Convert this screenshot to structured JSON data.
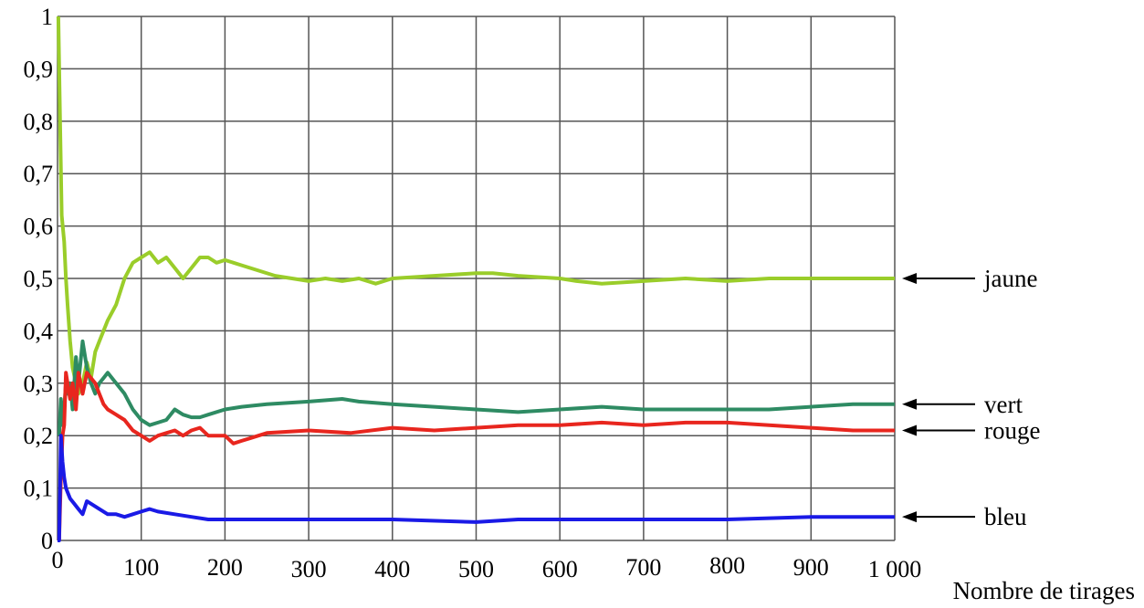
{
  "chart_data": {
    "type": "line",
    "title": "",
    "xlabel": "Nombre de tirages",
    "ylabel": "",
    "xlim": [
      0,
      1000
    ],
    "ylim": [
      0,
      1
    ],
    "grid": true,
    "x_ticks": [
      "0",
      "100",
      "200",
      "300",
      "400",
      "500",
      "600",
      "700",
      "800",
      "900",
      "1000"
    ],
    "y_ticks": [
      "0",
      "0,1",
      "0,2",
      "0,3",
      "0,4",
      "0,5",
      "0,6",
      "0,7",
      "0,8",
      "0,9",
      "1"
    ],
    "x_tick_labels": [
      "0",
      "100",
      "200",
      "300",
      "400",
      "500",
      "600",
      "700",
      "800",
      "900",
      "1 000"
    ],
    "series": [
      {
        "name": "jaune",
        "color": "#9acd2a",
        "x": [
          1,
          3,
          5,
          8,
          10,
          12,
          15,
          18,
          22,
          25,
          30,
          35,
          40,
          45,
          50,
          60,
          70,
          80,
          90,
          100,
          110,
          120,
          130,
          140,
          150,
          160,
          170,
          180,
          190,
          200,
          220,
          240,
          260,
          280,
          300,
          320,
          340,
          360,
          380,
          400,
          450,
          500,
          520,
          550,
          600,
          620,
          650,
          700,
          750,
          800,
          850,
          900,
          950,
          1000
        ],
        "y": [
          1.0,
          0.8,
          0.62,
          0.57,
          0.5,
          0.45,
          0.38,
          0.33,
          0.3,
          0.28,
          0.3,
          0.34,
          0.31,
          0.36,
          0.38,
          0.42,
          0.45,
          0.5,
          0.53,
          0.54,
          0.55,
          0.53,
          0.54,
          0.52,
          0.5,
          0.52,
          0.54,
          0.54,
          0.53,
          0.535,
          0.525,
          0.515,
          0.505,
          0.5,
          0.495,
          0.5,
          0.495,
          0.5,
          0.49,
          0.5,
          0.505,
          0.51,
          0.51,
          0.505,
          0.5,
          0.495,
          0.49,
          0.495,
          0.5,
          0.495,
          0.5,
          0.5,
          0.5,
          0.5
        ]
      },
      {
        "name": "vert",
        "color": "#2e8b63",
        "x": [
          2,
          4,
          6,
          8,
          10,
          12,
          15,
          18,
          22,
          25,
          30,
          35,
          40,
          45,
          50,
          55,
          60,
          70,
          80,
          90,
          100,
          110,
          120,
          130,
          140,
          150,
          160,
          170,
          180,
          200,
          220,
          250,
          300,
          340,
          360,
          400,
          450,
          500,
          550,
          600,
          650,
          700,
          750,
          800,
          850,
          900,
          950,
          1000
        ],
        "y": [
          0.2,
          0.27,
          0.22,
          0.25,
          0.3,
          0.28,
          0.3,
          0.25,
          0.35,
          0.3,
          0.38,
          0.33,
          0.3,
          0.28,
          0.3,
          0.31,
          0.32,
          0.3,
          0.28,
          0.25,
          0.23,
          0.22,
          0.225,
          0.23,
          0.25,
          0.24,
          0.235,
          0.235,
          0.24,
          0.25,
          0.255,
          0.26,
          0.265,
          0.27,
          0.265,
          0.26,
          0.255,
          0.25,
          0.245,
          0.25,
          0.255,
          0.25,
          0.25,
          0.25,
          0.25,
          0.255,
          0.26,
          0.26
        ]
      },
      {
        "name": "rouge",
        "color": "#e8261e",
        "x": [
          2,
          4,
          6,
          8,
          10,
          12,
          15,
          18,
          22,
          25,
          30,
          35,
          40,
          45,
          50,
          55,
          60,
          70,
          80,
          90,
          100,
          110,
          120,
          130,
          140,
          150,
          160,
          170,
          180,
          200,
          210,
          220,
          230,
          250,
          300,
          350,
          400,
          450,
          500,
          550,
          600,
          650,
          700,
          750,
          800,
          850,
          900,
          950,
          1000
        ],
        "y": [
          0.0,
          0.12,
          0.2,
          0.22,
          0.32,
          0.3,
          0.27,
          0.3,
          0.25,
          0.32,
          0.28,
          0.32,
          0.31,
          0.3,
          0.28,
          0.26,
          0.25,
          0.24,
          0.23,
          0.21,
          0.2,
          0.19,
          0.2,
          0.205,
          0.21,
          0.2,
          0.21,
          0.215,
          0.2,
          0.2,
          0.185,
          0.19,
          0.195,
          0.205,
          0.21,
          0.205,
          0.215,
          0.21,
          0.215,
          0.22,
          0.22,
          0.225,
          0.22,
          0.225,
          0.225,
          0.22,
          0.215,
          0.21,
          0.21
        ]
      },
      {
        "name": "bleu",
        "color": "#1a1ae6",
        "x": [
          0,
          2,
          4,
          6,
          8,
          10,
          15,
          20,
          25,
          30,
          35,
          40,
          50,
          60,
          70,
          80,
          90,
          100,
          110,
          120,
          140,
          160,
          180,
          200,
          250,
          300,
          400,
          500,
          550,
          600,
          700,
          800,
          900,
          1000
        ],
        "y": [
          0.0,
          0.0,
          0.2,
          0.15,
          0.12,
          0.1,
          0.08,
          0.07,
          0.06,
          0.05,
          0.075,
          0.07,
          0.06,
          0.05,
          0.05,
          0.045,
          0.05,
          0.055,
          0.06,
          0.055,
          0.05,
          0.045,
          0.04,
          0.04,
          0.04,
          0.04,
          0.04,
          0.035,
          0.04,
          0.04,
          0.04,
          0.04,
          0.045,
          0.045
        ]
      }
    ],
    "annotations": [
      {
        "series": "jaune",
        "label": "jaune"
      },
      {
        "series": "vert",
        "label": "vert"
      },
      {
        "series": "rouge",
        "label": "rouge"
      },
      {
        "series": "bleu",
        "label": "bleu"
      }
    ]
  }
}
